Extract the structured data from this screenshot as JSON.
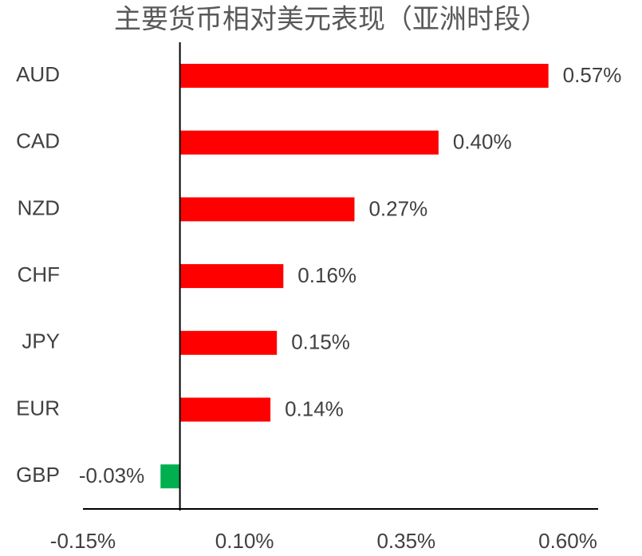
{
  "chart_data": {
    "type": "hbar",
    "title": "主要货币相对美元表现（亚洲时段）",
    "categories": [
      "AUD",
      "CAD",
      "NZD",
      "CHF",
      "JPY",
      "EUR",
      "GBP"
    ],
    "values": [
      0.57,
      0.4,
      0.27,
      0.16,
      0.15,
      0.14,
      -0.03
    ],
    "value_labels": [
      "0.57%",
      "0.40%",
      "0.27%",
      "0.16%",
      "0.15%",
      "0.14%",
      "-0.03%"
    ],
    "colors": [
      "#ff0000",
      "#ff0000",
      "#ff0000",
      "#ff0000",
      "#ff0000",
      "#ff0000",
      "#00b050"
    ],
    "xlim": [
      -0.15,
      0.65
    ],
    "xticks": [
      {
        "value": -0.15,
        "label": "-0.15%"
      },
      {
        "value": 0.1,
        "label": "0.10%"
      },
      {
        "value": 0.35,
        "label": "0.35%"
      },
      {
        "value": 0.6,
        "label": "0.60%"
      }
    ],
    "grid": false
  }
}
